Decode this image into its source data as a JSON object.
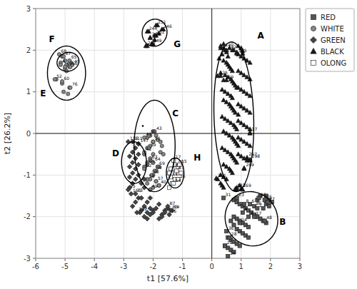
{
  "chart_data": {
    "type": "scatter",
    "x_label": "t1 [57.6%]",
    "y_label": "t2 [26.2%]",
    "xlim": [
      -6,
      3
    ],
    "ylim": [
      -3,
      3
    ],
    "xticks": [
      -6,
      -5,
      -4,
      -3,
      -2,
      -1,
      0,
      1,
      2,
      3
    ],
    "yticks": [
      -3,
      -2,
      -1,
      0,
      1,
      2,
      3
    ],
    "grid": true,
    "legend": "right",
    "reference_lines": {
      "x": [
        0
      ],
      "y": [
        0
      ]
    },
    "series": [
      {
        "name": "RED",
        "color": "#555555",
        "marker": "square",
        "x": [
          0.75,
          0.85,
          0.95,
          1.05,
          1.15,
          1.25,
          1.35,
          1.45,
          1.55,
          1.65,
          1.75,
          1.85,
          0.75,
          0.85,
          0.95,
          1.05,
          1.15,
          1.25,
          0.65,
          0.75,
          0.85,
          0.95,
          1.05,
          1.15,
          1.25,
          0.55,
          0.65,
          0.75,
          0.85,
          0.95,
          0.45,
          0.55,
          0.65,
          0.75,
          1.95,
          2.05,
          1.85,
          1.95,
          1.75,
          1.65,
          1.85,
          1.55
        ],
        "y": [
          -1.6,
          -1.65,
          -1.7,
          -1.75,
          -1.8,
          -1.85,
          -1.9,
          -1.95,
          -2.0,
          -2.05,
          -2.1,
          -2.15,
          -2.0,
          -2.05,
          -2.1,
          -2.15,
          -2.2,
          -2.25,
          -2.1,
          -2.2,
          -2.3,
          -2.35,
          -2.4,
          -2.45,
          -2.5,
          -2.5,
          -2.55,
          -2.6,
          -2.65,
          -2.7,
          -2.7,
          -2.75,
          -2.8,
          -2.85,
          -1.6,
          -1.65,
          -1.7,
          -1.75,
          -1.8,
          -1.5,
          -1.5,
          -1.6
        ],
        "labeled_x": [
          0.4,
          0.5,
          0.6,
          0.45,
          0.55,
          0.85,
          1.1,
          1.3,
          1.45,
          1.55,
          1.05,
          1.25,
          1.45,
          1.6,
          1.8,
          1.9,
          1.8,
          0.95
        ],
        "labeled_y": [
          -1.55,
          -2.35,
          -2.5,
          -2.7,
          -2.95,
          -1.55,
          -1.7,
          -1.7,
          -1.75,
          -1.8,
          -1.9,
          -2.0,
          -2.0,
          -1.55,
          -1.6,
          -1.65,
          -2.1,
          -2.15
        ],
        "labels": [
          "31",
          "36",
          "28",
          "29",
          "34",
          "23",
          "8",
          "6",
          "86",
          "2",
          "4",
          "9",
          "17",
          "26",
          "25",
          "27",
          "48",
          "24"
        ]
      },
      {
        "name": "WHITE",
        "color": "#888888",
        "marker": "circle",
        "x": [
          -5.1,
          -5.0,
          -4.95,
          -4.85,
          -4.8,
          -5.15,
          -5.0,
          -4.95,
          -5.3,
          -5.1,
          -4.85,
          -4.9,
          -5.05,
          -2.0,
          -2.1,
          -2.2,
          -2.0,
          -2.1,
          -2.2,
          -2.3,
          -2.0,
          -2.1,
          -2.2,
          -2.3,
          -2.0,
          -1.8,
          -1.9,
          -2.0,
          -2.1,
          -2.2,
          -1.9,
          -1.8,
          -2.0,
          -2.1,
          -1.9,
          -1.85,
          -1.75,
          -1.7,
          -1.75,
          -1.65
        ],
        "y": [
          1.85,
          1.75,
          1.65,
          1.6,
          1.7,
          1.7,
          1.55,
          1.5,
          1.3,
          1.2,
          1.1,
          0.95,
          1.0,
          0.05,
          -0.05,
          -0.1,
          -0.2,
          -0.3,
          -0.35,
          -0.5,
          -0.5,
          -0.6,
          -0.7,
          -0.8,
          -0.7,
          -0.8,
          -0.9,
          -1.0,
          -1.1,
          -1.2,
          -1.15,
          -1.25,
          -1.3,
          -1.35,
          -0.05,
          -0.15,
          -0.2,
          -0.3,
          -0.45,
          -0.5
        ],
        "labeled_x": [
          -5.2,
          -5.05,
          -4.85,
          -5.15,
          -5.0,
          -4.82,
          -4.75,
          -5.35,
          -5.1,
          -4.82,
          -1.95,
          -2.15,
          -2.3,
          -2.0,
          -2.15,
          -2.3,
          -2.1,
          -2.2,
          -2.3,
          -2.0,
          -1.85,
          -1.95,
          -2.05,
          -2.2,
          -1.9,
          -1.8,
          -2.1
        ],
        "labeled_y": [
          1.9,
          1.85,
          1.75,
          1.65,
          1.6,
          1.6,
          1.65,
          1.3,
          1.25,
          1.1,
          0.05,
          -0.05,
          -0.1,
          -0.2,
          -0.35,
          -0.45,
          -0.65,
          -0.75,
          -0.85,
          -0.7,
          -0.8,
          -0.9,
          -1.0,
          -1.1,
          -1.15,
          -1.25,
          -1.35
        ],
        "labels": [
          "68",
          "67",
          "65",
          "4",
          "69",
          "66",
          "45",
          "52",
          "60",
          "76",
          "43",
          "36",
          "41",
          "55",
          "39",
          "42",
          "63",
          "61",
          "62",
          "64",
          "69",
          "59",
          "60",
          "58",
          "57",
          "40",
          "49"
        ]
      },
      {
        "name": "GREEN",
        "color": "#444444",
        "marker": "diamond",
        "x": [
          -2.5,
          -2.6,
          -2.7,
          -2.8,
          -2.5,
          -2.6,
          -2.7,
          -2.8,
          -2.5,
          -2.6,
          -2.7,
          -2.8,
          -2.5,
          -2.6,
          -2.7,
          -2.8,
          -2.3,
          -2.4,
          -2.3,
          -2.1,
          -2.2,
          -2.3,
          -2.4,
          -2.1,
          -2.2,
          -2.3,
          -2.0,
          -2.1,
          -2.2,
          -1.8,
          -1.9,
          -2.0,
          -1.6,
          -1.7,
          -1.8,
          -1.5,
          -1.6,
          -1.7,
          -2.5,
          -2.6,
          -2.7,
          -2.4
        ],
        "y": [
          -0.25,
          -0.35,
          -0.45,
          -0.55,
          -0.5,
          -0.6,
          -0.7,
          -0.8,
          -0.75,
          -0.85,
          -0.95,
          -1.05,
          -1.0,
          -1.1,
          -1.2,
          -1.3,
          -1.1,
          -1.2,
          -1.3,
          -1.55,
          -1.65,
          -1.75,
          -1.85,
          -1.8,
          -1.9,
          -2.0,
          -1.85,
          -1.95,
          -2.05,
          -1.7,
          -1.8,
          -1.9,
          -1.85,
          -1.95,
          -2.05,
          -1.8,
          -1.9,
          -2.0,
          -1.55,
          -1.65,
          -1.75,
          -1.55
        ],
        "labeled_x": [
          -2.85,
          -2.7,
          -2.5,
          -2.85,
          -2.75,
          -2.6,
          -2.45,
          -2.55,
          -1.5,
          -1.4,
          -1.35,
          -1.45
        ],
        "labeled_y": [
          -0.2,
          -0.2,
          -0.25,
          -1.35,
          -1.45,
          -1.45,
          -1.9,
          -1.9,
          -1.75,
          -1.85,
          -1.85,
          -1.95
        ],
        "labels": [
          "116",
          "111",
          "147",
          "95",
          "160",
          "73",
          "97",
          "137",
          "B7",
          "B5",
          "14",
          "16"
        ]
      },
      {
        "name": "BLACK",
        "color": "#1a1a1a",
        "marker": "triangle",
        "x": [
          0.3,
          0.45,
          0.5,
          0.35,
          0.55,
          0.25,
          0.4,
          0.5,
          0.55,
          0.6,
          0.65,
          0.7,
          0.3,
          0.45,
          0.55,
          0.65,
          0.7,
          0.75,
          0.8,
          0.85,
          0.35,
          0.45,
          0.55,
          0.65,
          0.7,
          0.4,
          0.5,
          0.6,
          0.65,
          0.7,
          0.75,
          0.8,
          0.9,
          0.35,
          0.45,
          0.55,
          0.65,
          0.75,
          0.8,
          0.85,
          0.4,
          0.5,
          0.6,
          0.7,
          0.75,
          0.8,
          0.85,
          0.9,
          0.35,
          0.45,
          0.55,
          0.65,
          0.7,
          0.75,
          0.8,
          0.85,
          0.4,
          0.5,
          0.6,
          0.65,
          0.7,
          0.3,
          0.4,
          0.5,
          0.3,
          0.35,
          0.4,
          0.9,
          1.0,
          1.1,
          1.2,
          1.3,
          0.9,
          1.0,
          1.1,
          1.2,
          1.3,
          0.9,
          1.0,
          1.1,
          1.2,
          1.3,
          0.9,
          1.0,
          1.1,
          1.2,
          1.3,
          0.9,
          1.0,
          1.1,
          1.2,
          1.3,
          0.9,
          1.0,
          1.1,
          1.2,
          1.3,
          0.9,
          1.0,
          1.1,
          1.2,
          0.3,
          0.4,
          0.75,
          0.85,
          0.9,
          1.0,
          1.05,
          0.85,
          0.95,
          0.6,
          0.7,
          1.05,
          0.3,
          0.5,
          1.3,
          1.2,
          1.3,
          1.1,
          0.2,
          0.85,
          1.05,
          -2.15,
          -1.85,
          -1.65,
          -2.1,
          -1.9,
          -1.8,
          -2.0,
          -2.2,
          -1.95
        ],
        "y": [
          2.05,
          2.0,
          1.95,
          1.9,
          1.85,
          1.8,
          1.75,
          1.7,
          1.65,
          1.6,
          1.55,
          1.5,
          1.45,
          1.4,
          1.35,
          1.3,
          1.25,
          1.2,
          1.15,
          1.1,
          1.05,
          1.0,
          0.95,
          0.9,
          0.85,
          0.8,
          0.75,
          0.7,
          0.65,
          0.6,
          0.55,
          0.5,
          0.45,
          0.4,
          0.35,
          0.3,
          0.25,
          0.2,
          0.15,
          0.1,
          0.05,
          0.0,
          -0.05,
          -0.1,
          -0.15,
          -0.2,
          -0.25,
          -0.3,
          -0.35,
          -0.4,
          -0.45,
          -0.5,
          -0.55,
          -0.6,
          -0.65,
          -0.7,
          -0.75,
          -0.8,
          -0.85,
          -0.9,
          -0.95,
          -1.0,
          -1.05,
          -1.1,
          -1.2,
          -1.25,
          -1.3,
          1.9,
          1.85,
          1.8,
          1.75,
          1.7,
          1.5,
          1.45,
          1.4,
          1.35,
          1.3,
          1.1,
          1.05,
          1.0,
          0.95,
          0.9,
          0.7,
          0.65,
          0.6,
          0.55,
          0.5,
          0.3,
          0.25,
          0.2,
          0.15,
          0.1,
          -0.1,
          -0.15,
          -0.2,
          -0.25,
          -0.3,
          -0.5,
          -0.55,
          -0.6,
          -0.65,
          2.1,
          2.15,
          2.0,
          1.95,
          2.1,
          2.05,
          1.98,
          -1.3,
          -1.25,
          2.05,
          2.0,
          1.92,
          1.38,
          1.28,
          0.0,
          -0.6,
          -0.65,
          -0.85,
          -1.1,
          -1.35,
          -1.35,
          2.45,
          2.6,
          2.5,
          2.3,
          2.35,
          2.4,
          2.15,
          2.1,
          2.25
        ],
        "labeled_x": [
          0.4,
          0.5,
          0.85,
          0.2,
          0.4,
          1.3,
          1.2,
          1.3,
          1.1,
          0.15,
          0.8,
          1.0,
          -2.2,
          -1.9,
          -1.7,
          -2.1,
          -1.95,
          -2.05,
          -2.25
        ],
        "labeled_y": [
          2.05,
          2.0,
          1.92,
          1.38,
          1.28,
          0.02,
          -0.58,
          -0.63,
          -0.83,
          -1.08,
          -1.33,
          -1.33,
          2.45,
          2.6,
          2.5,
          2.3,
          2.35,
          2.15,
          2.1
        ],
        "labels": [
          "140",
          "142",
          "195",
          "125",
          "169",
          "17",
          "297",
          "298",
          "269",
          "291",
          "183",
          "269",
          "244",
          "251",
          "246",
          "269",
          "252",
          "249",
          "247"
        ]
      },
      {
        "name": "OLONG",
        "color": "#ffffff",
        "marker": "square",
        "x": [
          -1.25,
          -1.35,
          -1.45,
          -1.25,
          -1.15,
          -1.05,
          -1.15,
          -1.25,
          -1.35,
          -1.45,
          -1.15,
          -1.05
        ],
        "y": [
          -0.75,
          -0.85,
          -0.95,
          -0.95,
          -0.8,
          -0.7,
          -0.95,
          -1.1,
          -1.2,
          -1.3,
          -1.1,
          -0.95
        ],
        "labeled_x": [
          -1.3,
          -1.4,
          -1.2,
          -1.1,
          -1.4,
          -1.3,
          -1.15
        ],
        "labeled_y": [
          -0.65,
          -0.85,
          -0.9,
          -0.75,
          -1.05,
          -1.2,
          -1.1
        ],
        "labels": [
          "17",
          "18",
          "67",
          "15",
          "11",
          "14",
          "16"
        ]
      }
    ],
    "dots": {
      "x": [
        -2.35
      ],
      "y": [
        0.18
      ],
      "color": "#000000"
    },
    "ellipses": [
      {
        "label": "E",
        "cx": -4.95,
        "cy": 1.45,
        "width": 1.3,
        "height": 1.3,
        "angle": 15,
        "label_x": -5.85,
        "label_y": 0.9
      },
      {
        "label": "F",
        "cx": -4.9,
        "cy": 1.72,
        "width": 0.75,
        "height": 0.45,
        "angle": 5,
        "label_x": -5.55,
        "label_y": 2.2
      },
      {
        "label": "G",
        "cx": -1.95,
        "cy": 2.42,
        "width": 0.85,
        "height": 0.65,
        "angle": 5,
        "label_x": -1.3,
        "label_y": 2.08
      },
      {
        "label": "C",
        "cx": -1.95,
        "cy": -0.3,
        "width": 1.4,
        "height": 2.2,
        "angle": 0,
        "label_x": -1.35,
        "label_y": 0.42
      },
      {
        "label": "D",
        "cx": -2.65,
        "cy": -0.7,
        "width": 0.85,
        "height": 1.0,
        "angle": 5,
        "label_x": -3.4,
        "label_y": -0.55
      },
      {
        "label": "H",
        "cx": -1.25,
        "cy": -0.95,
        "width": 0.6,
        "height": 0.72,
        "angle": 0,
        "label_x": -0.62,
        "label_y": -0.65
      },
      {
        "label": "A",
        "cx": 0.75,
        "cy": 0.4,
        "width": 1.35,
        "height": 3.6,
        "angle": 3,
        "label_x": 1.55,
        "label_y": 2.28
      },
      {
        "label": "B",
        "cx": 1.35,
        "cy": -2.05,
        "width": 1.8,
        "height": 1.3,
        "angle": -5,
        "label_x": 2.3,
        "label_y": -2.2
      }
    ]
  }
}
